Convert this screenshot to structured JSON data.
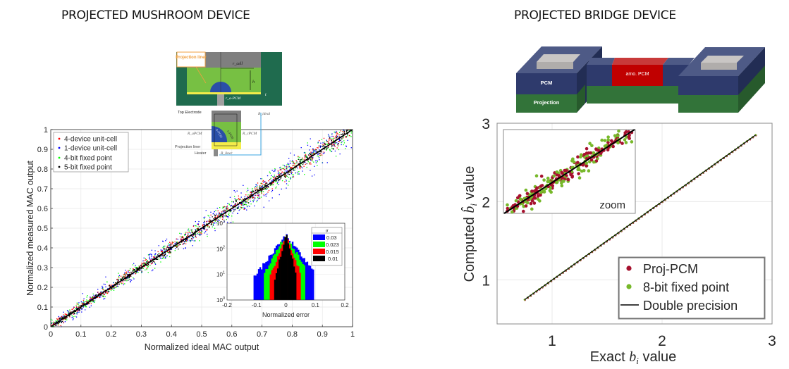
{
  "titles": {
    "left": "PROJECTED MUSHROOM DEVICE",
    "right": "PROJECTED BRIDGE DEVICE"
  },
  "mushroom_diagram": {
    "projection_liner": "Projection liner",
    "r_cell": "r_cell",
    "h": "h",
    "t": "t",
    "r_a_pcm": "r_a-PCM",
    "top_electrode": "Top Electrode",
    "r_ideal": "R_ideal",
    "r_a_pcm_res": "R_aPCM",
    "r_c_pcm_res": "R_cPCM",
    "c_pcm": "c-PCM",
    "a_pcm": "a-PCM",
    "projection_liner_2": "Projection liner",
    "heater": "Heater",
    "r_liner": "R_liner"
  },
  "bridge_diagram": {
    "pcm": "PCM",
    "projection": "Projection",
    "amo_pcm": "amo. PCM"
  },
  "colors": {
    "red": "#ff0000",
    "blue": "#0000ff",
    "green": "#00ff00",
    "black": "#000000",
    "proj_pcm": "#a6112e",
    "fixed8": "#77b82a"
  },
  "chart_data": [
    {
      "type": "scatter",
      "title": "",
      "xlabel": "Normalized ideal MAC output",
      "ylabel": "Normalized measured MAC output",
      "xlim": [
        0,
        1
      ],
      "ylim": [
        0,
        1
      ],
      "xticks": [
        "0",
        "0.1",
        "0.2",
        "0.3",
        "0.4",
        "0.5",
        "0.6",
        "0.7",
        "0.8",
        "0.9",
        "1"
      ],
      "yticks": [
        "0",
        "0.1",
        "0.2",
        "0.3",
        "0.4",
        "0.5",
        "0.6",
        "0.7",
        "0.8",
        "0.9",
        "1"
      ],
      "grid": true,
      "legend_position": "top-left",
      "series": [
        {
          "name": "4-device unit-cell",
          "color": "#ff0000",
          "spread": 0.015
        },
        {
          "name": "1-device unit-cell",
          "color": "#0000ff",
          "spread": 0.03
        },
        {
          "name": "4-bit fixed point",
          "color": "#00ff00",
          "spread": 0.023
        },
        {
          "name": "5-bit fixed point",
          "color": "#000000",
          "spread": 0.01
        }
      ],
      "reference_line": {
        "x": [
          0,
          1
        ],
        "y": [
          0,
          1
        ]
      }
    },
    {
      "type": "bar",
      "title": "",
      "xlabel": "Normalized error",
      "ylabel": "",
      "xlim": [
        -0.2,
        0.2
      ],
      "ylim": [
        1,
        1000
      ],
      "yscale": "log",
      "xticks": [
        "-0.2",
        "-0.1",
        "0",
        "0.1",
        "0.2"
      ],
      "yticks": [
        {
          "base": "10",
          "exp": "0"
        },
        {
          "base": "10",
          "exp": "1"
        },
        {
          "base": "10",
          "exp": "2"
        },
        {
          "base": "10",
          "exp": "3"
        }
      ],
      "legend_title": "σ",
      "legend_position": "top-right",
      "series": [
        {
          "name": "0.03",
          "color": "#0000ff",
          "sigma": 0.03,
          "peak": 350,
          "half_width": 0.11
        },
        {
          "name": "0.023",
          "color": "#00ff00",
          "sigma": 0.023,
          "peak": 350,
          "half_width": 0.075
        },
        {
          "name": "0.015",
          "color": "#ff0000",
          "sigma": 0.015,
          "peak": 350,
          "half_width": 0.055
        },
        {
          "name": "0.01",
          "color": "#000000",
          "sigma": 0.01,
          "peak": 380,
          "half_width": 0.04
        }
      ]
    },
    {
      "type": "scatter",
      "title": "",
      "xlabel_prefix": "Exact ",
      "xlabel_var": "b",
      "xlabel_sub": "i",
      "xlabel_suffix": " value",
      "ylabel_prefix": "Computed ",
      "ylabel_var": "b̂",
      "ylabel_sub": "i",
      "ylabel_suffix": " value",
      "xlim": [
        0.5,
        3
      ],
      "ylim": [
        0.44,
        3
      ],
      "xticks": [
        "1",
        "2",
        "3"
      ],
      "yticks": [
        "1",
        "2",
        "3"
      ],
      "grid": true,
      "legend_position": "bottom-right",
      "series": [
        {
          "name": "Proj-PCM",
          "color": "#a6112e",
          "marker": "dot"
        },
        {
          "name": "8-bit fixed point",
          "color": "#77b82a",
          "marker": "dot"
        },
        {
          "name": "Double precision",
          "color": "#000000",
          "marker": "line"
        }
      ],
      "main_range": [
        0.75,
        2.85
      ],
      "inset_label": "zoom"
    }
  ]
}
